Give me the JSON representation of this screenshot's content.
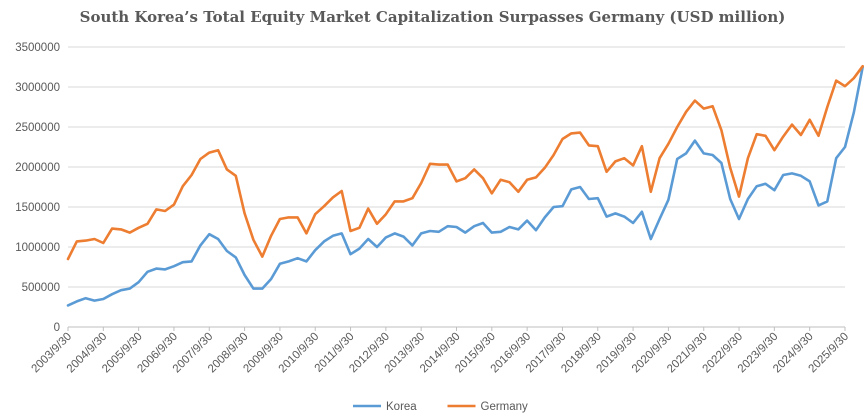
{
  "chart_data": {
    "type": "line",
    "title": "South Korea’s Total Equity Market Capitalization Surpasses Germany (USD million)",
    "xlabel": "",
    "ylabel": "",
    "ylim": [
      0,
      3500000
    ],
    "y_ticks": [
      "0",
      "500000",
      "1000000",
      "1500000",
      "2000000",
      "2500000",
      "3000000",
      "3500000"
    ],
    "x_tick_labels": [
      "2003/9/30",
      "2004/9/30",
      "2005/9/30",
      "2006/9/30",
      "2007/9/30",
      "2008/9/30",
      "2009/9/30",
      "2010/9/30",
      "2011/9/30",
      "2012/9/30",
      "2013/9/30",
      "2014/9/30",
      "2015/9/30",
      "2016/9/30",
      "2017/9/30",
      "2018/9/30",
      "2019/9/30",
      "2020/9/30",
      "2021/9/30",
      "2022/9/30",
      "2023/9/30",
      "2024/9/30",
      "2025/9/30"
    ],
    "x_start": 2003.75,
    "x_step": 0.25,
    "x_end": 2025.75,
    "grid": "horizontal",
    "legend_position": "bottom",
    "series": [
      {
        "name": "Korea",
        "color": "#5b9bd5",
        "values": [
          270000,
          320000,
          360000,
          330000,
          350000,
          410000,
          460000,
          480000,
          560000,
          690000,
          730000,
          720000,
          760000,
          810000,
          820000,
          1020000,
          1160000,
          1100000,
          950000,
          870000,
          650000,
          480000,
          480000,
          600000,
          790000,
          820000,
          860000,
          820000,
          960000,
          1070000,
          1140000,
          1170000,
          910000,
          980000,
          1100000,
          1000000,
          1120000,
          1170000,
          1130000,
          1020000,
          1170000,
          1200000,
          1190000,
          1260000,
          1250000,
          1180000,
          1260000,
          1300000,
          1180000,
          1190000,
          1250000,
          1220000,
          1330000,
          1210000,
          1370000,
          1500000,
          1510000,
          1720000,
          1750000,
          1600000,
          1610000,
          1380000,
          1420000,
          1380000,
          1300000,
          1440000,
          1100000,
          1350000,
          1590000,
          2100000,
          2170000,
          2330000,
          2170000,
          2150000,
          2050000,
          1600000,
          1350000,
          1600000,
          1760000,
          1790000,
          1710000,
          1900000,
          1920000,
          1890000,
          1820000,
          1520000,
          1570000,
          2110000,
          2250000,
          2680000,
          3250000
        ]
      },
      {
        "name": "Germany",
        "color": "#ed7d31",
        "values": [
          850000,
          1070000,
          1080000,
          1100000,
          1050000,
          1230000,
          1220000,
          1180000,
          1240000,
          1290000,
          1470000,
          1450000,
          1530000,
          1760000,
          1900000,
          2100000,
          2180000,
          2210000,
          1970000,
          1890000,
          1420000,
          1090000,
          880000,
          1140000,
          1350000,
          1370000,
          1370000,
          1170000,
          1410000,
          1510000,
          1620000,
          1700000,
          1200000,
          1240000,
          1480000,
          1290000,
          1410000,
          1570000,
          1570000,
          1610000,
          1800000,
          2040000,
          2030000,
          2030000,
          1820000,
          1860000,
          1970000,
          1860000,
          1670000,
          1840000,
          1810000,
          1690000,
          1840000,
          1870000,
          1990000,
          2150000,
          2350000,
          2420000,
          2430000,
          2270000,
          2260000,
          1940000,
          2070000,
          2110000,
          2020000,
          2260000,
          1690000,
          2110000,
          2290000,
          2500000,
          2690000,
          2830000,
          2730000,
          2760000,
          2460000,
          1990000,
          1630000,
          2110000,
          2410000,
          2390000,
          2210000,
          2380000,
          2530000,
          2400000,
          2590000,
          2390000,
          2750000,
          3080000,
          3010000,
          3110000,
          3260000
        ]
      }
    ]
  }
}
